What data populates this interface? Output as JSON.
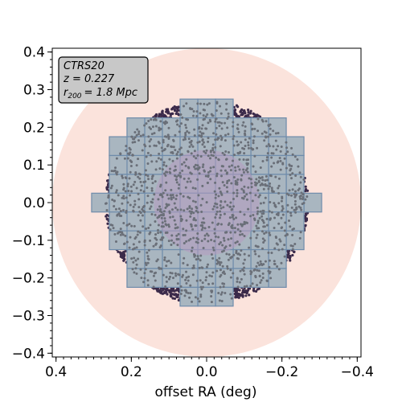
{
  "chart_data": {
    "type": "scatter",
    "xlabel": "offset RA (deg)",
    "ylabel": "",
    "xlim": [
      0.41,
      -0.41
    ],
    "ylim": [
      -0.41,
      0.41
    ],
    "x_ticks": [
      0.4,
      0.2,
      0.0,
      -0.2,
      -0.4
    ],
    "x_tick_labels": [
      "0.4",
      "0.2",
      "0.0",
      "−0.2",
      "−0.4"
    ],
    "y_ticks": [
      0.4,
      0.3,
      0.2,
      0.1,
      0.0,
      -0.1,
      -0.2,
      -0.3,
      -0.4
    ],
    "y_tick_labels": [
      "0.4",
      "0.3",
      "0.2",
      "0.1",
      "0.0",
      "−0.1",
      "−0.2",
      "−0.3",
      "−0.4"
    ],
    "grid": false,
    "annotation": {
      "lines": [
        "CTRS20",
        "z = 0.227",
        "= 1.8 Mpc"
      ],
      "r_symbol": "r",
      "r_subscript": "200",
      "placement": "top-left"
    },
    "r200_circle": {
      "center": [
        0.0,
        0.0
      ],
      "radius_deg": 0.41,
      "color": "#fbe3dc"
    },
    "core_region": {
      "center": [
        0.0,
        0.0
      ],
      "radius_deg": 0.14,
      "color": "#b79ac0"
    },
    "target_region": {
      "center": [
        0.0,
        0.0
      ],
      "radius_deg": 0.27,
      "color": "#3b2a4a"
    },
    "pointing_grid": {
      "cell_deg": 0.047,
      "row_extents": [
        {
          "y": 0.25,
          "x_from": 0.047,
          "x_to": -0.047
        },
        {
          "y": 0.2,
          "x_from": 0.188,
          "x_to": -0.188
        },
        {
          "y": 0.15,
          "x_from": 0.235,
          "x_to": -0.235
        },
        {
          "y": 0.1,
          "x_from": 0.235,
          "x_to": -0.235
        },
        {
          "y": 0.05,
          "x_from": 0.235,
          "x_to": -0.235
        },
        {
          "y": 0.0,
          "x_from": 0.282,
          "x_to": -0.282
        },
        {
          "y": -0.05,
          "x_from": 0.235,
          "x_to": -0.235
        },
        {
          "y": -0.1,
          "x_from": 0.235,
          "x_to": -0.235
        },
        {
          "y": -0.15,
          "x_from": 0.188,
          "x_to": -0.188
        },
        {
          "y": -0.2,
          "x_from": 0.188,
          "x_to": -0.188
        },
        {
          "y": -0.25,
          "x_from": 0.047,
          "x_to": -0.047
        }
      ],
      "fill": "#a9b6c0",
      "edge": "#6f8cab"
    },
    "points": {
      "observed_color": "#6a6f78",
      "unobserved_color": "#3b2a4a",
      "count": 1800
    }
  }
}
